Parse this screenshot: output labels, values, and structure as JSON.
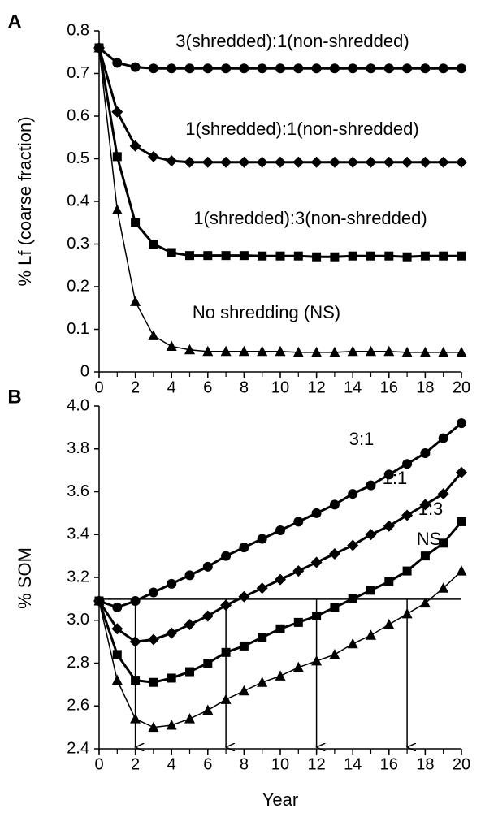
{
  "chart_data": [
    {
      "type": "line",
      "panel": "A",
      "y_label": "% Lf (coarse fraction)",
      "x": [
        0,
        1,
        2,
        3,
        4,
        5,
        6,
        7,
        8,
        9,
        10,
        11,
        12,
        13,
        14,
        15,
        16,
        17,
        18,
        19,
        20
      ],
      "xlim": [
        0,
        20
      ],
      "xticks": [
        0,
        2,
        4,
        6,
        8,
        10,
        12,
        14,
        16,
        18,
        20
      ],
      "ylim": [
        0,
        0.8
      ],
      "yticks": [
        0,
        0.1,
        0.2,
        0.3,
        0.4,
        0.5,
        0.6,
        0.7,
        0.8
      ],
      "series": [
        {
          "name": "3(shredded):1(non-shredded)",
          "color": "#000000",
          "marker": "circle",
          "values": [
            0.76,
            0.725,
            0.715,
            0.712,
            0.712,
            0.712,
            0.712,
            0.712,
            0.712,
            0.712,
            0.712,
            0.712,
            0.712,
            0.712,
            0.712,
            0.712,
            0.712,
            0.712,
            0.712,
            0.712,
            0.712
          ]
        },
        {
          "name": "1(shredded):1(non-shredded)",
          "color": "#000000",
          "marker": "diamond",
          "values": [
            0.76,
            0.61,
            0.53,
            0.505,
            0.495,
            0.492,
            0.492,
            0.492,
            0.492,
            0.492,
            0.492,
            0.492,
            0.492,
            0.492,
            0.492,
            0.492,
            0.492,
            0.492,
            0.492,
            0.492,
            0.492
          ]
        },
        {
          "name": "1(shredded):3(non-shredded)",
          "color": "#000000",
          "marker": "square",
          "values": [
            0.76,
            0.505,
            0.35,
            0.3,
            0.28,
            0.273,
            0.273,
            0.273,
            0.273,
            0.272,
            0.272,
            0.272,
            0.27,
            0.27,
            0.272,
            0.272,
            0.272,
            0.27,
            0.272,
            0.272,
            0.272
          ]
        },
        {
          "name": "No shredding (NS)",
          "color": "#000000",
          "marker": "triangle",
          "values": [
            0.76,
            0.38,
            0.165,
            0.085,
            0.06,
            0.052,
            0.048,
            0.048,
            0.048,
            0.048,
            0.048,
            0.046,
            0.046,
            0.046,
            0.048,
            0.048,
            0.048,
            0.046,
            0.046,
            0.046,
            0.046
          ]
        }
      ]
    },
    {
      "type": "line",
      "panel": "B",
      "y_label": "% SOM",
      "x_label": "Year",
      "x": [
        0,
        1,
        2,
        3,
        4,
        5,
        6,
        7,
        8,
        9,
        10,
        11,
        12,
        13,
        14,
        15,
        16,
        17,
        18,
        19,
        20
      ],
      "xlim": [
        0,
        20
      ],
      "xticks": [
        0,
        2,
        4,
        6,
        8,
        10,
        12,
        14,
        16,
        18,
        20
      ],
      "ylim": [
        2.4,
        4.0
      ],
      "yticks": [
        2.4,
        2.6,
        2.8,
        {
          "value": 3.0,
          "label": "3.0"
        },
        3.2,
        3.4,
        3.6,
        3.8,
        {
          "value": 4.0,
          "label": "4.0"
        }
      ],
      "reference_line": 3.1,
      "arrows_x": [
        2,
        7,
        12,
        17
      ],
      "series": [
        {
          "name": "3:1",
          "color": "#000000",
          "marker": "circle",
          "values": [
            3.09,
            3.06,
            3.09,
            3.13,
            3.17,
            3.21,
            3.25,
            3.3,
            3.34,
            3.38,
            3.42,
            3.46,
            3.5,
            3.54,
            3.59,
            3.63,
            3.68,
            3.73,
            3.78,
            3.85,
            3.92
          ]
        },
        {
          "name": "1:1",
          "color": "#000000",
          "marker": "diamond",
          "values": [
            3.09,
            2.96,
            2.9,
            2.91,
            2.94,
            2.98,
            3.02,
            3.07,
            3.11,
            3.15,
            3.19,
            3.23,
            3.27,
            3.31,
            3.35,
            3.4,
            3.44,
            3.49,
            3.54,
            3.59,
            3.69
          ]
        },
        {
          "name": "1:3",
          "color": "#000000",
          "marker": "square",
          "values": [
            3.09,
            2.84,
            2.72,
            2.71,
            2.73,
            2.76,
            2.8,
            2.85,
            2.88,
            2.92,
            2.96,
            2.99,
            3.02,
            3.06,
            3.1,
            3.14,
            3.18,
            3.23,
            3.3,
            3.36,
            3.46
          ]
        },
        {
          "name": "NS",
          "color": "#000000",
          "marker": "triangle",
          "values": [
            3.09,
            2.72,
            2.54,
            2.5,
            2.51,
            2.54,
            2.58,
            2.63,
            2.67,
            2.71,
            2.74,
            2.78,
            2.81,
            2.84,
            2.89,
            2.93,
            2.98,
            3.03,
            3.08,
            3.15,
            3.23
          ]
        }
      ]
    }
  ]
}
